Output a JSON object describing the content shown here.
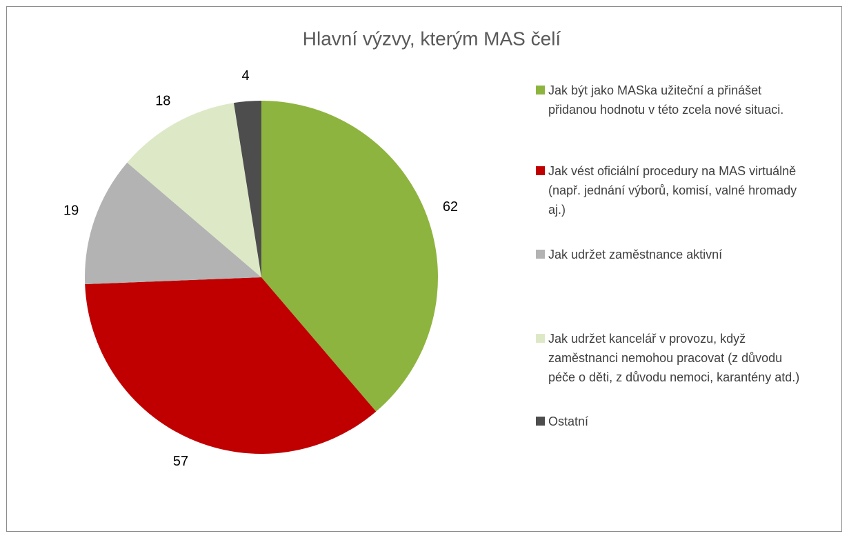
{
  "chart_data": {
    "type": "pie",
    "title": "Hlavní výzvy, kterým MAS čelí",
    "categories": [
      "Jak být jako MASka užiteční a přinášet přidanou hodnotu v této zcela nové situaci.",
      "Jak vést oficiální procedury na MAS virtuálně (např. jednání výborů, komisí, valné hromady aj.)",
      "Jak udržet zaměstnance aktivní",
      "Jak udržet kancelář v provozu, když zaměstnanci nemohou pracovat (z důvodu péče o děti, z důvodu nemoci, karantény atd.)",
      "Ostatní"
    ],
    "values": [
      62,
      57,
      19,
      18,
      4
    ],
    "colors": [
      "#8db43e",
      "#c00000",
      "#b3b3b3",
      "#dde9c6",
      "#4d4d4d"
    ],
    "legend": "right"
  }
}
